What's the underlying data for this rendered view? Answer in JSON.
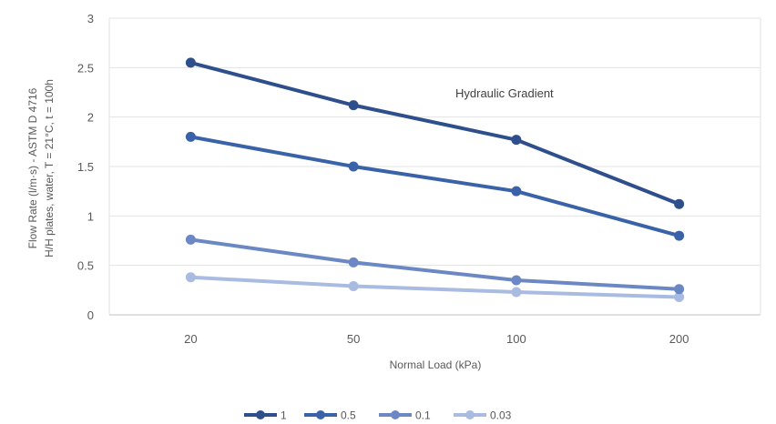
{
  "chart_data": {
    "type": "line",
    "title": "",
    "xlabel": "Normal Load (kPa)",
    "ylabel_line1": "Flow Rate (l/m·s) - ASTM D 4716",
    "ylabel_line2": "H/H plates, water, T = 21°C, t = 100h",
    "annotation": "Hydraulic Gradient",
    "categories": [
      "20",
      "50",
      "100",
      "200"
    ],
    "ylim": [
      0,
      3
    ],
    "yticks": [
      0,
      0.5,
      1,
      1.5,
      2,
      2.5,
      3
    ],
    "ytick_labels": [
      "0",
      "0.5",
      "1",
      "1.5",
      "2",
      "2.5",
      "3"
    ],
    "grid": true,
    "legend_position": "bottom",
    "series": [
      {
        "name": "1",
        "values": [
          2.55,
          2.12,
          1.77,
          1.12
        ],
        "color": "#2e4f8c"
      },
      {
        "name": "0.5",
        "values": [
          1.8,
          1.5,
          1.25,
          0.8
        ],
        "color": "#3a62a8"
      },
      {
        "name": "0.1",
        "values": [
          0.76,
          0.53,
          0.35,
          0.26
        ],
        "color": "#6b88c4"
      },
      {
        "name": "0.03",
        "values": [
          0.38,
          0.29,
          0.23,
          0.18
        ],
        "color": "#a9bbe0"
      }
    ]
  }
}
